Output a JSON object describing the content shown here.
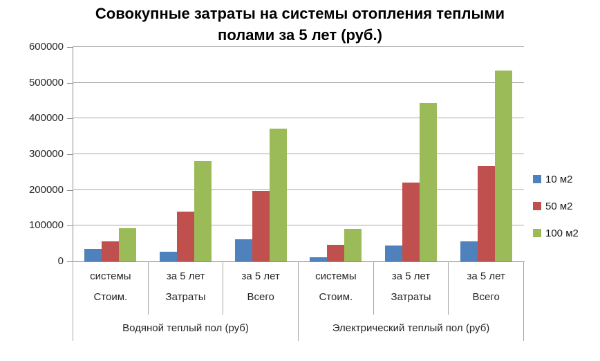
{
  "title": {
    "line1": "Совокупные затраты на системы отопления теплыми",
    "line2": "полами за 5 лет (руб.)"
  },
  "colors": {
    "series_blue": "#4F81BD",
    "series_red": "#C0504D",
    "series_green": "#9BBB59",
    "grid": "#A6A6A6",
    "axis": "#8C8C8C"
  },
  "chart_data": {
    "type": "bar",
    "title": "Совокупные затраты на системы отопления теплыми полами за 5 лет (руб.)",
    "ylabel": "",
    "xlabel": "",
    "ylim": [
      0,
      600000
    ],
    "yticks": [
      0,
      100000,
      200000,
      300000,
      400000,
      500000,
      600000
    ],
    "grid": true,
    "legend_position": "right",
    "groups": [
      "Водяной теплый пол (руб)",
      "Электрический теплый пол (руб)"
    ],
    "x_categories": [
      {
        "full": "Стоим. системы",
        "row1": "системы",
        "row2": "Стоим.",
        "group": 0
      },
      {
        "full": "Затраты за 5 лет",
        "row1": "за 5 лет",
        "row2": "Затраты",
        "group": 0
      },
      {
        "full": "Всего за 5 лет",
        "row1": "за 5 лет",
        "row2": "Всего",
        "group": 0
      },
      {
        "full": "Стоим. системы",
        "row1": "системы",
        "row2": "Стоим.",
        "group": 1
      },
      {
        "full": "Затраты за 5 лет",
        "row1": "за 5 лет",
        "row2": "Затраты",
        "group": 1
      },
      {
        "full": "Всего за 5 лет",
        "row1": "за 5 лет",
        "row2": "Всего",
        "group": 1
      }
    ],
    "series": [
      {
        "name": "10 м2",
        "color": "#4F81BD",
        "values": [
          34000,
          28000,
          62000,
          12000,
          45000,
          57000
        ]
      },
      {
        "name": "50 м2",
        "color": "#C0504D",
        "values": [
          57000,
          140000,
          197000,
          47000,
          221000,
          268000
        ]
      },
      {
        "name": "100 м2",
        "color": "#9BBB59",
        "values": [
          92000,
          280000,
          372000,
          91000,
          444000,
          535000
        ]
      }
    ]
  }
}
